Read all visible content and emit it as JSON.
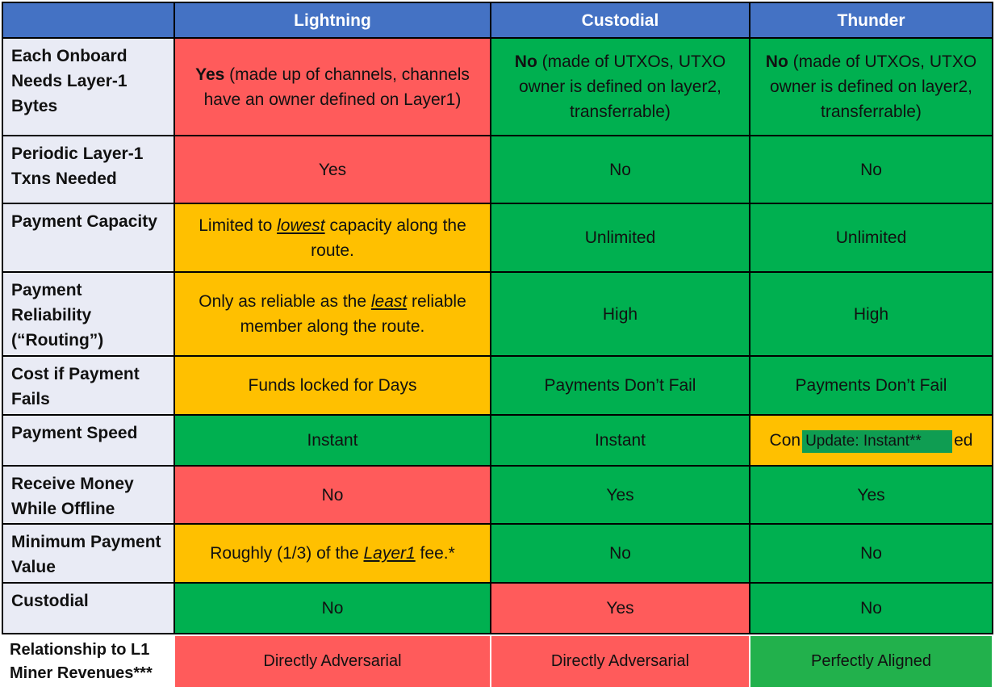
{
  "table": {
    "header": [
      "Lightning",
      "Custodial",
      "Thunder"
    ],
    "rows": [
      {
        "label": "Each Onboard Needs Layer-1 Bytes",
        "cells": [
          {
            "color": "#ff5b5b",
            "text": [
              {
                "text": "Yes",
                "style": "bold"
              },
              {
                "text": " (made up of channels, channels have an owner defined on Layer1)"
              }
            ]
          },
          {
            "color": "#00b050",
            "text": [
              {
                "text": "No",
                "style": "bold"
              },
              {
                "text": " (made of UTXOs, UTXO owner is defined on layer2, transferrable)"
              }
            ]
          },
          {
            "color": "#00b050",
            "text": [
              {
                "text": "No",
                "style": "bold"
              },
              {
                "text": " (made of UTXOs, UTXO owner is defined on layer2, transferrable)"
              }
            ]
          }
        ]
      },
      {
        "label": "Periodic Layer-1 Txns Needed",
        "cells": [
          {
            "color": "#ff5b5b",
            "text": [
              {
                "text": "Yes"
              }
            ]
          },
          {
            "color": "#00b050",
            "text": [
              {
                "text": "No"
              }
            ]
          },
          {
            "color": "#00b050",
            "text": [
              {
                "text": "No"
              }
            ]
          }
        ]
      },
      {
        "label": "Payment Capacity",
        "cells": [
          {
            "color": "#ffc000",
            "text": [
              {
                "text": "Limited to "
              },
              {
                "text": "lowest",
                "style": "em"
              },
              {
                "text": " capacity along the route."
              }
            ]
          },
          {
            "color": "#00b050",
            "text": [
              {
                "text": "Unlimited"
              }
            ]
          },
          {
            "color": "#00b050",
            "text": [
              {
                "text": "Unlimited"
              }
            ]
          }
        ]
      },
      {
        "label": "Payment Reliability (“Routing”)",
        "cells": [
          {
            "color": "#ffc000",
            "text": [
              {
                "text": "Only as reliable as the "
              },
              {
                "text": "least",
                "style": "em"
              },
              {
                "text": " reliable member along the route."
              }
            ]
          },
          {
            "color": "#00b050",
            "text": [
              {
                "text": "High"
              }
            ]
          },
          {
            "color": "#00b050",
            "text": [
              {
                "text": "High"
              }
            ]
          }
        ]
      },
      {
        "label": "Cost if Payment Fails",
        "cells": [
          {
            "color": "#ffc000",
            "text": [
              {
                "text": "Funds locked for Days"
              }
            ]
          },
          {
            "color": "#00b050",
            "text": [
              {
                "text": "Payments Don’t Fail"
              }
            ]
          },
          {
            "color": "#00b050",
            "text": [
              {
                "text": "Payments Don’t Fail"
              }
            ]
          }
        ]
      },
      {
        "label": "Payment Speed",
        "cells": [
          {
            "color": "#00b050",
            "text": [
              {
                "text": "Instant"
              }
            ]
          },
          {
            "color": "#00b050",
            "text": [
              {
                "text": "Instant"
              }
            ]
          },
          {
            "color": "#ffc000",
            "text": [
              {
                "text": "Con"
              },
              {
                "text": "ed"
              }
            ],
            "overlay": "Update: Instant**"
          }
        ]
      },
      {
        "label": "Receive Money While Offline",
        "cells": [
          {
            "color": "#ff5b5b",
            "text": [
              {
                "text": "No"
              }
            ]
          },
          {
            "color": "#00b050",
            "text": [
              {
                "text": "Yes"
              }
            ]
          },
          {
            "color": "#00b050",
            "text": [
              {
                "text": "Yes"
              }
            ]
          }
        ]
      },
      {
        "label": "Minimum Payment Value",
        "cells": [
          {
            "color": "#ffc000",
            "text": [
              {
                "text": "Roughly (1/3) of the "
              },
              {
                "text": "Layer1",
                "style": "em"
              },
              {
                "text": " fee.*"
              }
            ]
          },
          {
            "color": "#00b050",
            "text": [
              {
                "text": "No"
              }
            ]
          },
          {
            "color": "#00b050",
            "text": [
              {
                "text": "No"
              }
            ]
          }
        ]
      },
      {
        "label": "Custodial",
        "cells": [
          {
            "color": "#00b050",
            "text": [
              {
                "text": "No"
              }
            ]
          },
          {
            "color": "#ff5b5b",
            "text": [
              {
                "text": "Yes"
              }
            ]
          },
          {
            "color": "#00b050",
            "text": [
              {
                "text": "No"
              }
            ]
          }
        ]
      }
    ],
    "footer_row": {
      "label": "Relationship to L1 Miner Revenues***",
      "cells": [
        {
          "color": "#ff5b5b",
          "text": [
            {
              "text": "Directly Adversarial"
            }
          ]
        },
        {
          "color": "#ff5b5b",
          "text": [
            {
              "text": "Directly Adversarial"
            }
          ]
        },
        {
          "color": "#22b14c",
          "text": [
            {
              "text": "Perfectly Aligned"
            }
          ]
        }
      ]
    }
  }
}
